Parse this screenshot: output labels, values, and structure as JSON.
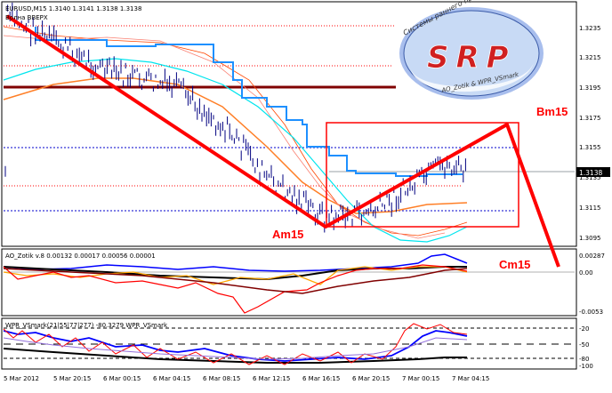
{
  "main_panel": {
    "symbol_line": "EURUSD,M15  1.3140 1.3141 1.3138 1.3138",
    "wave_label": "Волна ВВЕРХ",
    "current_price": "1.3138",
    "price_labels": [
      "1.3235",
      "1.3215",
      "1.3195",
      "1.3175",
      "1.3155",
      "1.3135",
      "1.3115",
      "1.3095"
    ],
    "points": {
      "am": "Am15",
      "bm": "Bm15",
      "cm": "Cm15"
    }
  },
  "logo": {
    "letters": "SRP",
    "arc_text": "Системы раннего прогнозирования",
    "bottom_text": "AO_Zotik & WPR_VSmark"
  },
  "ao_panel": {
    "title": "AO_Zotik v.8 0.00132 0.00017 0.00056 0.00001",
    "labels": [
      "0.00287",
      "0.00",
      "-0.0053"
    ]
  },
  "wpr_panel": {
    "title": "WPR_VSmark(21|55|77|277) -80.3279 WPR_VSmark",
    "labels": [
      "-20",
      "-50",
      "-80",
      "-100"
    ]
  },
  "time_axis": {
    "labels": [
      "5 Mar 2012",
      "5 Mar 20:15",
      "6 Mar 00:15",
      "6 Mar 04:15",
      "6 Mar 08:15",
      "6 Mar 12:15",
      "6 Mar 16:15",
      "6 Mar 20:15",
      "7 Mar 00:15",
      "7 Mar 04:15"
    ]
  },
  "colors": {
    "zigzag": "#ff0000",
    "staircase": "#1e90ff",
    "cyan_ma": "#00e5ee",
    "brown_line": "#800000",
    "orange_line": "#ff7f27",
    "ao_blue": "#0000ff",
    "ao_orange": "#ffa500"
  }
}
